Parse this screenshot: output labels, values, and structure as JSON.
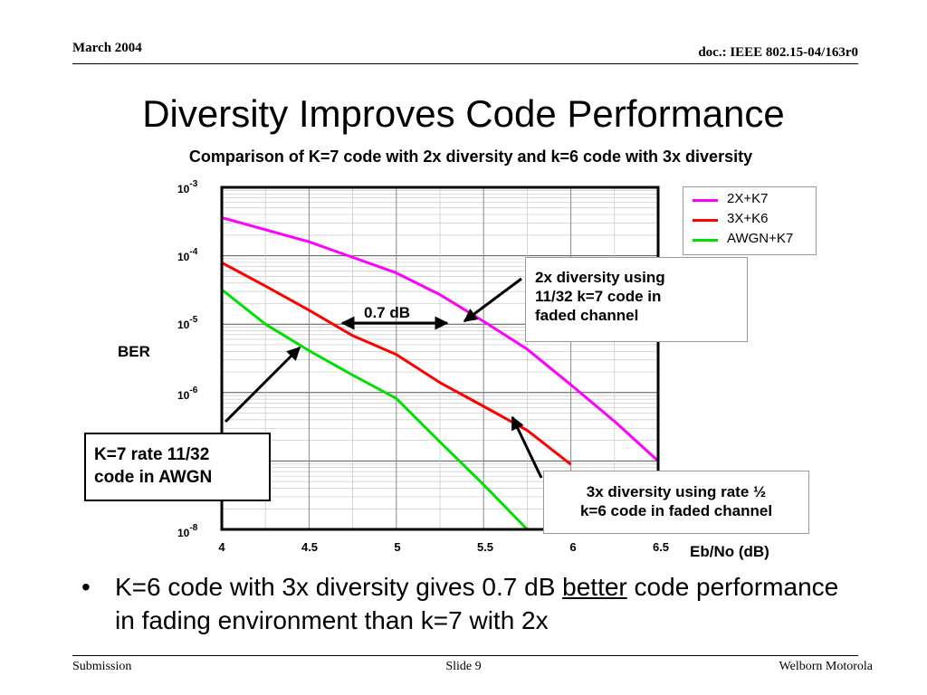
{
  "header": {
    "date": "March 2004",
    "doc": "doc.: IEEE 802.15-04/163r0"
  },
  "title": "Diversity Improves Code Performance",
  "subtitle": "Comparison of K=7 code with 2x diversity and k=6 code with 3x diversity",
  "chart_data": {
    "type": "line",
    "title": "Comparison of K=7 code with 2x diversity and k=6 code with 3x diversity",
    "xlabel": "Eb/No (dB)",
    "ylabel": "BER",
    "xlim": [
      4,
      6.5
    ],
    "ylim": [
      1e-08,
      0.001
    ],
    "yscale": "log",
    "grid": true,
    "legend_position": "outside-top-right",
    "x_ticks": [
      "4",
      "4.5",
      "5",
      "5.5",
      "6",
      "6.5"
    ],
    "y_ticks": [
      {
        "base": "10",
        "exp": "-3",
        "value": 0.001
      },
      {
        "base": "10",
        "exp": "-4",
        "value": 0.0001
      },
      {
        "base": "10",
        "exp": "-5",
        "value": 1e-05
      },
      {
        "base": "10",
        "exp": "-6",
        "value": 1e-06
      },
      {
        "base": "10",
        "exp": "-8",
        "value": 1e-08
      }
    ],
    "series": [
      {
        "name": "2X+K7",
        "color": "#ff00ff",
        "x": [
          4.0,
          4.5,
          5.0,
          5.25,
          5.5,
          5.75,
          6.0,
          6.25,
          6.5
        ],
        "y": [
          0.00036,
          0.00016,
          5.6e-05,
          2.7e-05,
          1.1e-05,
          4.3e-06,
          1.3e-06,
          3.8e-07,
          1e-07
        ]
      },
      {
        "name": "3X+K6",
        "color": "#ff0000",
        "x": [
          4.0,
          4.25,
          4.5,
          4.75,
          5.0,
          5.25,
          5.5,
          5.75,
          6.0
        ],
        "y": [
          7.9e-05,
          3.6e-05,
          1.6e-05,
          6.8e-06,
          3.6e-06,
          1.4e-06,
          6.3e-07,
          2.8e-07,
          8.9e-08
        ]
      },
      {
        "name": "AWGN+K7",
        "color": "#00e000",
        "x": [
          4.0,
          4.25,
          4.5,
          4.75,
          5.0,
          5.25,
          5.5,
          5.75
        ],
        "y": [
          3.2e-05,
          1e-05,
          4.1e-06,
          1.8e-06,
          8.2e-07,
          1.9e-07,
          4.5e-08,
          1e-08
        ]
      }
    ],
    "annotations": {
      "callout_2x": [
        "2x diversity using",
        "11/32 k=7 code in",
        "faded channel"
      ],
      "callout_awgn": [
        "K=7 rate 11/32",
        "code in AWGN"
      ],
      "callout_3x": [
        "3x diversity using rate ½",
        "k=6 code in faded channel"
      ],
      "gap_label": "0.7 dB"
    }
  },
  "bullet": {
    "pre": "K=6 code with 3x diversity gives 0.7 dB ",
    "emph": "better",
    "post": " code performance in fading environment than k=7 with 2x"
  },
  "footer": {
    "left": "Submission",
    "center": "Slide 9",
    "right": "Welborn Motorola"
  }
}
